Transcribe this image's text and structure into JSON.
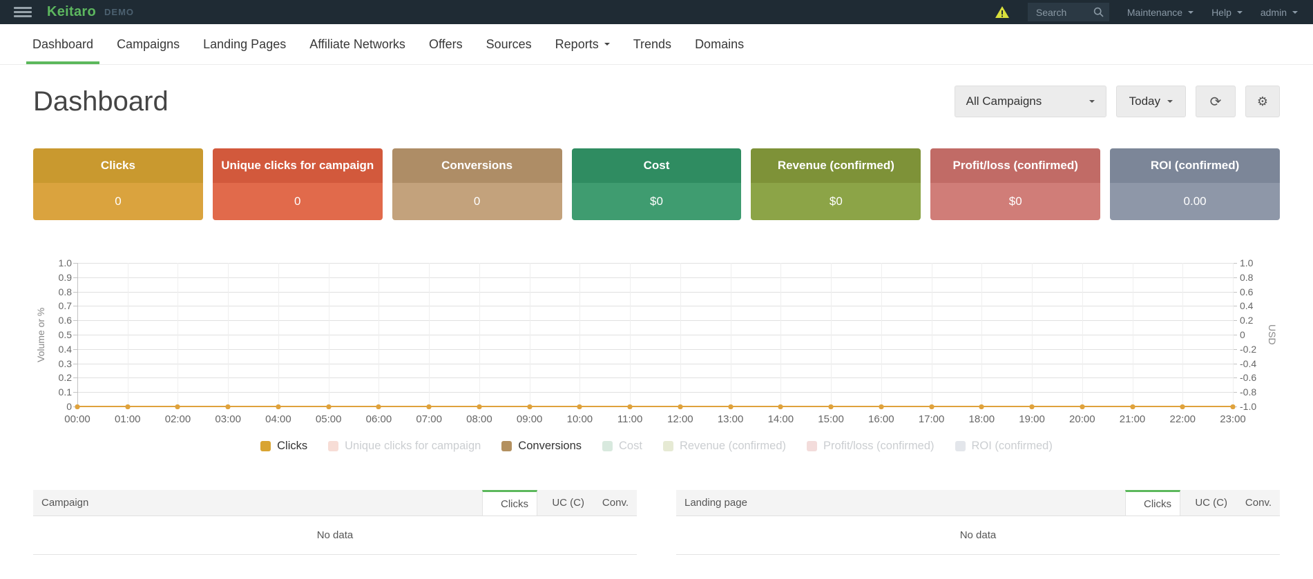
{
  "topbar": {
    "logo": "Keitaro",
    "badge": "DEMO",
    "search_placeholder": "Search",
    "menus": [
      {
        "label": "Maintenance"
      },
      {
        "label": "Help"
      },
      {
        "label": "admin"
      }
    ]
  },
  "nav": {
    "items": [
      {
        "label": "Dashboard",
        "active": true
      },
      {
        "label": "Campaigns"
      },
      {
        "label": "Landing Pages"
      },
      {
        "label": "Affiliate Networks"
      },
      {
        "label": "Offers"
      },
      {
        "label": "Sources"
      },
      {
        "label": "Reports",
        "caret": true
      },
      {
        "label": "Trends"
      },
      {
        "label": "Domains"
      }
    ]
  },
  "header": {
    "title": "Dashboard",
    "campaign_filter": "All Campaigns",
    "date_filter": "Today"
  },
  "cards": [
    {
      "title": "Clicks",
      "value": "0",
      "header_color": "#c9992f",
      "body_color": "#daa33e"
    },
    {
      "title": "Unique clicks for campaign",
      "value": "0",
      "header_color": "#d2593c",
      "body_color": "#e16a4b"
    },
    {
      "title": "Conversions",
      "value": "0",
      "header_color": "#ae8d66",
      "body_color": "#c3a27c"
    },
    {
      "title": "Cost",
      "value": "$0",
      "header_color": "#2f8c61",
      "body_color": "#3f9c70"
    },
    {
      "title": "Revenue (confirmed)",
      "value": "$0",
      "header_color": "#7e9238",
      "body_color": "#8ca447"
    },
    {
      "title": "Profit/loss (confirmed)",
      "value": "$0",
      "header_color": "#c16b66",
      "body_color": "#d07d78"
    },
    {
      "title": "ROI (confirmed)",
      "value": "0.00",
      "header_color": "#7c8698",
      "body_color": "#8e97a8"
    }
  ],
  "chart_data": {
    "type": "line",
    "title": "",
    "x": [
      "00:00",
      "01:00",
      "02:00",
      "03:00",
      "04:00",
      "05:00",
      "06:00",
      "07:00",
      "08:00",
      "09:00",
      "10:00",
      "11:00",
      "12:00",
      "13:00",
      "14:00",
      "15:00",
      "16:00",
      "17:00",
      "18:00",
      "19:00",
      "20:00",
      "21:00",
      "22:00",
      "23:00"
    ],
    "series": [
      {
        "name": "Clicks",
        "color": "#dfa23c",
        "visible": true,
        "values": [
          0,
          0,
          0,
          0,
          0,
          0,
          0,
          0,
          0,
          0,
          0,
          0,
          0,
          0,
          0,
          0,
          0,
          0,
          0,
          0,
          0,
          0,
          0,
          0
        ]
      },
      {
        "name": "Conversions",
        "color": "#b3905f",
        "visible": true,
        "values": [
          0,
          0,
          0,
          0,
          0,
          0,
          0,
          0,
          0,
          0,
          0,
          0,
          0,
          0,
          0,
          0,
          0,
          0,
          0,
          0,
          0,
          0,
          0,
          0
        ]
      }
    ],
    "left_axis": {
      "label": "Volume or %",
      "range": [
        0,
        1
      ],
      "ticks": [
        "1.0",
        "0.9",
        "0.8",
        "0.7",
        "0.6",
        "0.5",
        "0.4",
        "0.3",
        "0.2",
        "0.1",
        "0"
      ]
    },
    "right_axis": {
      "label": "USD",
      "range": [
        -1,
        1
      ],
      "ticks": [
        "1.0",
        "0.8",
        "0.6",
        "0.4",
        "0.2",
        "0",
        "-0.2",
        "-0.4",
        "-0.6",
        "-0.8",
        "-1.0"
      ]
    },
    "grid": true,
    "legend_position": "bottom"
  },
  "legend": [
    {
      "label": "Clicks",
      "swatch": "#d9a432",
      "muted": false
    },
    {
      "label": "Unique clicks for campaign",
      "swatch": "#f7ddd6",
      "muted": true
    },
    {
      "label": "Conversions",
      "swatch": "#b3905f",
      "muted": false
    },
    {
      "label": "Cost",
      "swatch": "#d8e9de",
      "muted": true
    },
    {
      "label": "Revenue (confirmed)",
      "swatch": "#e6ead4",
      "muted": true
    },
    {
      "label": "Profit/loss (confirmed)",
      "swatch": "#f3dcdb",
      "muted": true
    },
    {
      "label": "ROI (confirmed)",
      "swatch": "#e3e6eb",
      "muted": true
    }
  ],
  "tables": [
    {
      "name": "campaigns",
      "columns": [
        "Campaign",
        "Clicks",
        "UC (C)",
        "Conv."
      ],
      "sorted_column": "Clicks",
      "empty_text": "No data"
    },
    {
      "name": "landing-pages",
      "columns": [
        "Landing page",
        "Clicks",
        "UC (C)",
        "Conv."
      ],
      "sorted_column": "Clicks",
      "empty_text": "No data"
    }
  ],
  "colors": {
    "accent_green": "#5cb85c",
    "topbar_bg": "#1f2b34",
    "series_line": "#dfa23c",
    "warning_yellow": "#d9df3c"
  }
}
